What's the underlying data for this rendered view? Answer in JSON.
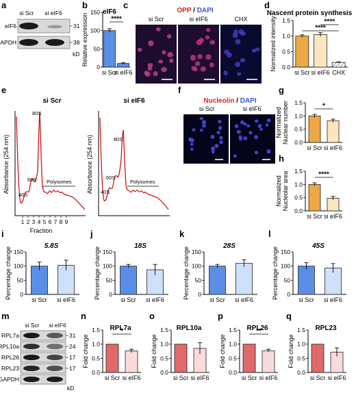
{
  "labels": {
    "a": "a",
    "b": "b",
    "c": "c",
    "d": "d",
    "e": "e",
    "f": "f",
    "g": "g",
    "h": "h",
    "i": "i",
    "j": "j",
    "k": "k",
    "l": "l",
    "m": "m",
    "n": "n",
    "o": "o",
    "p": "p",
    "q": "q"
  },
  "panel_a": {
    "lanes": [
      "si Scr",
      "si eIF6"
    ],
    "bands": [
      {
        "name": "eIF6",
        "mw": "31"
      },
      {
        "name": "GAPDH",
        "mw": "38"
      }
    ],
    "unit": "kD"
  },
  "panel_c": {
    "stain_main": "OPP",
    "stain_sep": " / ",
    "stain_counter": "DAPI",
    "conditions": [
      "si Scr",
      "si eIF6",
      "CHX"
    ]
  },
  "panel_e": {
    "plots": [
      {
        "title": "si Scr",
        "peaks": [
          "40S",
          "60S",
          "80S"
        ],
        "polysome_label": "Polysomes"
      },
      {
        "title": "si eIF6",
        "peaks": [
          "40S",
          "60S",
          "80S"
        ],
        "polysome_label": "Polysomes"
      }
    ],
    "ylabel": "Absorbance (254 nm)",
    "xlabel": "Fraction",
    "fractions": [
      "1",
      "2",
      "3",
      "4",
      "5",
      "6",
      "7",
      "8",
      "9"
    ]
  },
  "panel_f": {
    "stain_main": "Nucleolin",
    "stain_sep": " / ",
    "stain_counter": "DAPI",
    "conditions": [
      "si Scr",
      "si eIF6"
    ]
  },
  "panel_m": {
    "lanes": [
      "si Scr",
      "si eIF6"
    ],
    "bands": [
      {
        "name": "RPL7a",
        "mw": "31"
      },
      {
        "name": "RPL10a",
        "mw": "24"
      },
      {
        "name": "RPL26",
        "mw": "17"
      },
      {
        "name": "RPL23",
        "mw": "17"
      },
      {
        "name": "GAPDH",
        "mw": ""
      }
    ],
    "unit": "kD"
  },
  "chart_data": [
    {
      "panel": "b",
      "type": "bar",
      "title": "eIF6",
      "ylabel": "Relative expression",
      "categories": [
        "si Scr",
        "si eIF6"
      ],
      "values": [
        100,
        10
      ],
      "errors": [
        5,
        2
      ],
      "ylim": [
        0,
        150
      ],
      "yticks": [
        0,
        50,
        100,
        150
      ],
      "significance": [
        "****"
      ],
      "colors": [
        "#5b8fe6",
        "#5b8fe6"
      ]
    },
    {
      "panel": "d",
      "type": "bar",
      "title": "Nascent protein synthesis",
      "ylabel": "Normalized intensity",
      "categories": [
        "si Scr",
        "si eIF6",
        "CHX"
      ],
      "values": [
        1.0,
        1.05,
        0.15
      ],
      "errors": [
        0.04,
        0.06,
        0.02
      ],
      "ylim": [
        0,
        1.5
      ],
      "yticks": [
        0.0,
        0.5,
        1.0,
        1.5
      ],
      "significance": [
        "****",
        "****"
      ],
      "colors": [
        "#eca845",
        "#fbe6bf",
        "#ffffff"
      ]
    },
    {
      "panel": "g",
      "type": "bar",
      "ylabel": "Normalized Nuclear number",
      "categories": [
        "si Scr",
        "si eIF6"
      ],
      "values": [
        1.0,
        0.82
      ],
      "errors": [
        0.06,
        0.06
      ],
      "ylim": [
        0,
        1.5
      ],
      "yticks": [
        0.0,
        0.5,
        1.0,
        1.5
      ],
      "significance": [
        "*"
      ],
      "colors": [
        "#eca845",
        "#fbe6bf"
      ]
    },
    {
      "panel": "h",
      "type": "bar",
      "ylabel": "Normalized Nucleolar area",
      "categories": [
        "si Scr",
        "si eIF6"
      ],
      "values": [
        1.0,
        0.48
      ],
      "errors": [
        0.06,
        0.07
      ],
      "ylim": [
        0,
        1.5
      ],
      "yticks": [
        0.0,
        0.5,
        1.0,
        1.5
      ],
      "significance": [
        "****"
      ],
      "colors": [
        "#eca845",
        "#fbe6bf"
      ]
    },
    {
      "panel": "i",
      "type": "bar",
      "title": "5.8S",
      "ylabel": "Percentage change",
      "categories": [
        "si Scr",
        "si eIF6"
      ],
      "values": [
        100,
        103
      ],
      "errors": [
        14,
        18
      ],
      "ylim": [
        0,
        150
      ],
      "yticks": [
        0,
        50,
        100,
        150
      ],
      "significance": [],
      "colors": [
        "#5b8fe6",
        "#cfe0fa"
      ]
    },
    {
      "panel": "j",
      "type": "bar",
      "title": "18S",
      "ylabel": "Percentage change",
      "categories": [
        "si Scr",
        "si eIF6"
      ],
      "values": [
        100,
        87
      ],
      "errors": [
        6,
        19
      ],
      "ylim": [
        0,
        150
      ],
      "yticks": [
        0,
        50,
        100,
        150
      ],
      "significance": [],
      "colors": [
        "#5b8fe6",
        "#cfe0fa"
      ]
    },
    {
      "panel": "k",
      "type": "bar",
      "title": "28S",
      "ylabel": "Percentage change",
      "categories": [
        "si Scr",
        "si eIF6"
      ],
      "values": [
        100,
        110
      ],
      "errors": [
        6,
        12
      ],
      "ylim": [
        0,
        150
      ],
      "yticks": [
        0,
        50,
        100,
        150
      ],
      "significance": [],
      "colors": [
        "#5b8fe6",
        "#cfe0fa"
      ]
    },
    {
      "panel": "l",
      "type": "bar",
      "title": "45S",
      "ylabel": "Percentage change",
      "categories": [
        "si Scr",
        "si eIF6"
      ],
      "values": [
        100,
        93
      ],
      "errors": [
        12,
        16
      ],
      "ylim": [
        0,
        150
      ],
      "yticks": [
        0,
        50,
        100,
        150
      ],
      "significance": [],
      "colors": [
        "#5b8fe6",
        "#cfe0fa"
      ]
    },
    {
      "panel": "n",
      "type": "bar",
      "title": "RPL7a",
      "ylabel": "Fold change",
      "categories": [
        "si Scr",
        "si eIF6"
      ],
      "values": [
        1.0,
        0.76
      ],
      "errors": [
        0,
        0.06
      ],
      "ylim": [
        0,
        1.5
      ],
      "yticks": [
        0.0,
        0.5,
        1.0,
        1.5
      ],
      "significance": [
        "*"
      ],
      "colors": [
        "#e06a6a",
        "#fadada"
      ]
    },
    {
      "panel": "o",
      "type": "bar",
      "title": "RPL10a",
      "ylabel": "Fold change",
      "categories": [
        "si Scr",
        "si eIF6"
      ],
      "values": [
        1.0,
        0.85
      ],
      "errors": [
        0,
        0.2
      ],
      "ylim": [
        0,
        1.5
      ],
      "yticks": [
        0.0,
        0.5,
        1.0,
        1.5
      ],
      "significance": [],
      "colors": [
        "#e06a6a",
        "#fadada"
      ]
    },
    {
      "panel": "p",
      "type": "bar",
      "title": "RPL26",
      "ylabel": "Fold change",
      "categories": [
        "si Scr",
        "si eIF6"
      ],
      "values": [
        1.0,
        0.77
      ],
      "errors": [
        0,
        0.05
      ],
      "ylim": [
        0,
        1.5
      ],
      "yticks": [
        0.0,
        0.5,
        1.0,
        1.5
      ],
      "significance": [
        "**"
      ],
      "colors": [
        "#e06a6a",
        "#fadada"
      ]
    },
    {
      "panel": "q",
      "type": "bar",
      "title": "RPL23",
      "ylabel": "Fold change",
      "categories": [
        "si Scr",
        "si eIF6"
      ],
      "values": [
        1.0,
        0.72
      ],
      "errors": [
        0,
        0.15
      ],
      "ylim": [
        0,
        1.5
      ],
      "yticks": [
        0.0,
        0.5,
        1.0,
        1.5
      ],
      "significance": [],
      "colors": [
        "#e06a6a",
        "#fadada"
      ]
    }
  ]
}
